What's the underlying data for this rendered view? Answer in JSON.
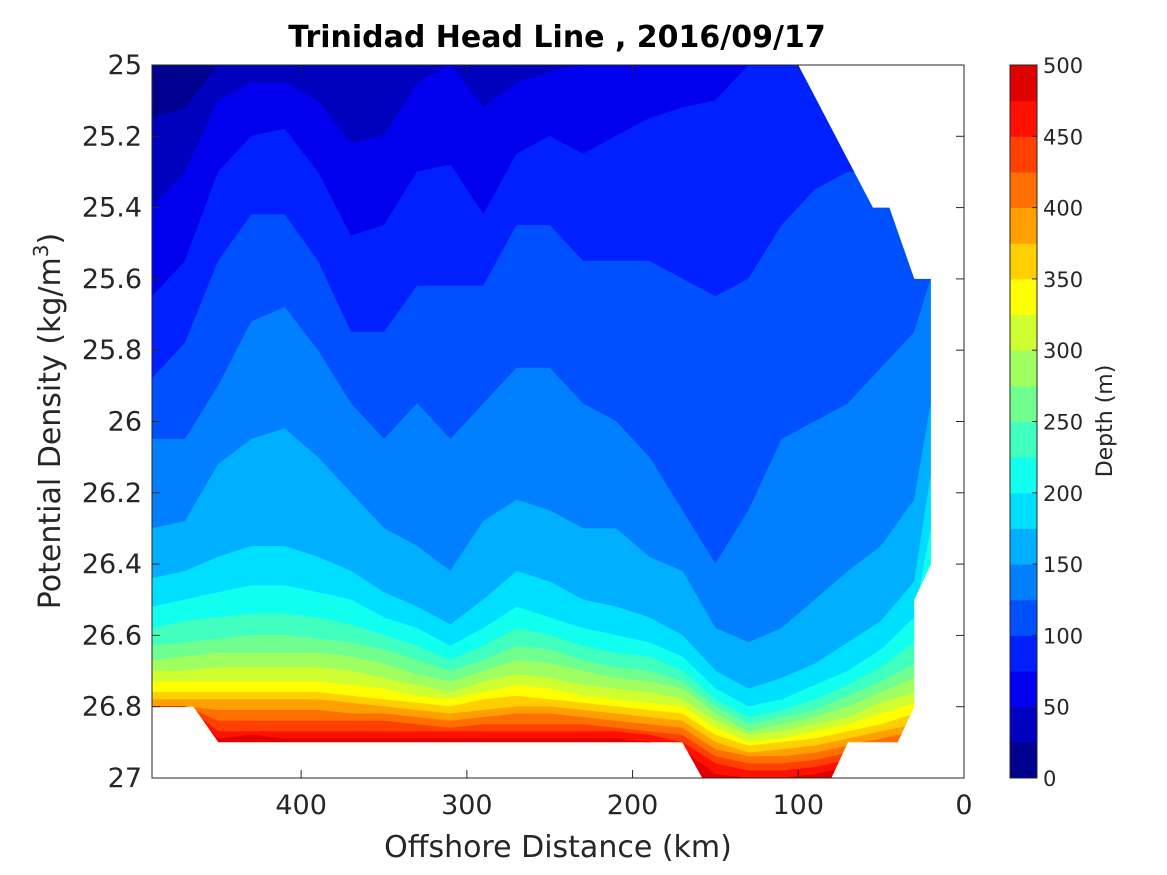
{
  "chart_data": {
    "type": "contourf",
    "title": "Trinidad Head Line , 2016/09/17",
    "xlabel": "Offshore Distance (km)",
    "ylabel_main": "Potential Density (kg/m",
    "ylabel_sup": "3",
    "ylabel_close": ")",
    "x_axis": {
      "lim": [
        0,
        490
      ],
      "reversed": true,
      "ticks": [
        400,
        300,
        200,
        100,
        0
      ],
      "tick_labels": [
        "400",
        "300",
        "200",
        "100",
        "0"
      ]
    },
    "y_axis": {
      "lim": [
        25,
        27
      ],
      "reversed": true,
      "ticks": [
        25,
        25.2,
        25.4,
        25.6,
        25.8,
        26,
        26.2,
        26.4,
        26.6,
        26.8,
        27
      ],
      "tick_labels": [
        "25",
        "25.2",
        "25.4",
        "25.6",
        "25.8",
        "26",
        "26.2",
        "26.4",
        "26.6",
        "26.8",
        "27"
      ]
    },
    "colorbar": {
      "label": "Depth (m)",
      "lim": [
        0,
        500
      ],
      "ticks": [
        0,
        50,
        100,
        150,
        200,
        250,
        300,
        350,
        400,
        450,
        500
      ],
      "tick_labels": [
        "0",
        "50",
        "100",
        "150",
        "200",
        "250",
        "300",
        "350",
        "400",
        "450",
        "500"
      ]
    },
    "levels": [
      0,
      25,
      50,
      75,
      100,
      125,
      150,
      175,
      200,
      225,
      250,
      275,
      300,
      325,
      350,
      375,
      400,
      425,
      450,
      475,
      500
    ],
    "band_colors": [
      "#00008f",
      "#0000bf",
      "#0000ef",
      "#0020ff",
      "#0050ff",
      "#0080ff",
      "#00afff",
      "#00dfff",
      "#10ffef",
      "#40ffbf",
      "#70ff8f",
      "#9fff60",
      "#cfff30",
      "#ffff00",
      "#ffcf00",
      "#ff9f00",
      "#ff7000",
      "#ff4000",
      "#ff1000",
      "#df0000"
    ],
    "colormap": "jet",
    "stations_x_km": [
      490,
      470,
      450,
      430,
      410,
      390,
      370,
      350,
      330,
      310,
      290,
      270,
      250,
      230,
      210,
      190,
      170,
      150,
      130,
      110,
      90,
      70,
      50,
      30,
      20
    ],
    "isopycnals": [
      {
        "depth": 25,
        "sigma": [
          25.15,
          25.12,
          25.0,
          25.0,
          25.0,
          25.0,
          25.0,
          25.0,
          25.0,
          25.0,
          25.0,
          25.0,
          25.0,
          25.0,
          25.0,
          25.0,
          25.0,
          25.0,
          25.0,
          25.0,
          25.0,
          25.0,
          25.0,
          25.0,
          25.0
        ]
      },
      {
        "depth": 50,
        "sigma": [
          25.4,
          25.3,
          25.1,
          25.05,
          25.05,
          25.1,
          25.22,
          25.2,
          25.05,
          25.0,
          25.12,
          25.05,
          25.02,
          25.0,
          25.0,
          25.0,
          25.0,
          25.0,
          25.0,
          25.0,
          25.0,
          25.0,
          25.0,
          25.0,
          25.0
        ]
      },
      {
        "depth": 75,
        "sigma": [
          25.65,
          25.55,
          25.3,
          25.2,
          25.18,
          25.3,
          25.48,
          25.45,
          25.3,
          25.28,
          25.42,
          25.25,
          25.2,
          25.25,
          25.2,
          25.15,
          25.12,
          25.1,
          25.0,
          25.0,
          25.0,
          25.0,
          25.0,
          25.0,
          25.0
        ]
      },
      {
        "depth": 100,
        "sigma": [
          25.88,
          25.78,
          25.55,
          25.42,
          25.42,
          25.55,
          25.75,
          25.75,
          25.62,
          25.62,
          25.62,
          25.45,
          25.45,
          25.55,
          25.55,
          25.55,
          25.6,
          25.65,
          25.6,
          25.45,
          25.35,
          25.3,
          25.3,
          25.2,
          25.0
        ]
      },
      {
        "depth": 125,
        "sigma": [
          26.05,
          26.05,
          25.9,
          25.72,
          25.68,
          25.8,
          25.95,
          26.05,
          25.95,
          26.05,
          25.95,
          25.85,
          25.85,
          25.95,
          26.0,
          26.1,
          26.25,
          26.4,
          26.25,
          26.05,
          26.0,
          25.95,
          25.85,
          25.75,
          25.6
        ]
      },
      {
        "depth": 150,
        "sigma": [
          26.3,
          26.28,
          26.12,
          26.05,
          26.02,
          26.1,
          26.2,
          26.3,
          26.35,
          26.42,
          26.28,
          26.22,
          26.25,
          26.3,
          26.3,
          26.38,
          26.42,
          26.58,
          26.62,
          26.58,
          26.5,
          26.42,
          26.35,
          26.22,
          25.95
        ]
      },
      {
        "depth": 175,
        "sigma": [
          26.44,
          26.42,
          26.38,
          26.35,
          26.35,
          26.38,
          26.42,
          26.48,
          26.52,
          26.57,
          26.5,
          26.42,
          26.45,
          26.5,
          26.52,
          26.55,
          26.6,
          26.7,
          26.75,
          26.72,
          26.68,
          26.62,
          26.56,
          26.45,
          26.15
        ]
      },
      {
        "depth": 200,
        "sigma": [
          26.52,
          26.5,
          26.48,
          26.46,
          26.46,
          26.48,
          26.5,
          26.55,
          26.58,
          26.63,
          26.58,
          26.52,
          26.55,
          26.58,
          26.6,
          26.62,
          26.66,
          26.75,
          26.8,
          26.78,
          26.74,
          26.7,
          26.64,
          26.55,
          26.3
        ]
      },
      {
        "depth": 225,
        "sigma": [
          26.58,
          26.56,
          26.55,
          26.54,
          26.54,
          26.55,
          26.57,
          26.6,
          26.63,
          26.67,
          26.63,
          26.58,
          26.6,
          26.63,
          26.65,
          26.66,
          26.7,
          26.78,
          26.83,
          26.81,
          26.78,
          26.74,
          26.69,
          26.62,
          26.4
        ]
      },
      {
        "depth": 250,
        "sigma": [
          26.63,
          26.62,
          26.61,
          26.6,
          26.6,
          26.61,
          26.62,
          26.64,
          26.67,
          26.7,
          26.67,
          26.63,
          26.64,
          26.67,
          26.69,
          26.7,
          26.73,
          26.8,
          26.85,
          26.83,
          26.81,
          26.77,
          26.73,
          26.68,
          26.5
        ]
      },
      {
        "depth": 275,
        "sigma": [
          26.67,
          26.66,
          26.65,
          26.65,
          26.65,
          26.65,
          26.66,
          26.68,
          26.71,
          26.73,
          26.7,
          26.67,
          26.68,
          26.7,
          26.72,
          26.73,
          26.75,
          26.82,
          26.87,
          26.85,
          26.83,
          26.8,
          26.76,
          26.72,
          26.6
        ]
      },
      {
        "depth": 300,
        "sigma": [
          26.7,
          26.7,
          26.69,
          26.69,
          26.69,
          26.69,
          26.7,
          26.72,
          26.74,
          26.76,
          26.73,
          26.71,
          26.72,
          26.74,
          26.75,
          26.76,
          26.78,
          26.84,
          26.88,
          26.87,
          26.85,
          26.83,
          26.79,
          26.76,
          26.68
        ]
      },
      {
        "depth": 325,
        "sigma": [
          26.73,
          26.73,
          26.73,
          26.73,
          26.73,
          26.73,
          26.74,
          26.75,
          26.77,
          26.78,
          26.76,
          26.74,
          26.75,
          26.77,
          26.78,
          26.79,
          26.8,
          26.86,
          26.9,
          26.89,
          26.87,
          26.85,
          26.82,
          26.79,
          26.74
        ]
      },
      {
        "depth": 350,
        "sigma": [
          26.76,
          26.76,
          26.76,
          26.76,
          26.76,
          26.76,
          26.77,
          26.78,
          26.79,
          26.8,
          26.78,
          26.77,
          26.78,
          26.79,
          26.8,
          26.81,
          26.82,
          26.88,
          26.91,
          26.9,
          26.89,
          26.87,
          26.85,
          26.82,
          26.79
        ]
      },
      {
        "depth": 375,
        "sigma": [
          26.78,
          26.78,
          26.78,
          26.78,
          26.78,
          26.78,
          26.79,
          26.8,
          26.81,
          26.82,
          26.81,
          26.8,
          26.8,
          26.81,
          26.82,
          26.83,
          26.84,
          26.9,
          26.93,
          26.92,
          26.91,
          26.89,
          26.87,
          26.85,
          26.83
        ]
      },
      {
        "depth": 400,
        "sigma": [
          26.8,
          26.8,
          26.81,
          26.81,
          26.81,
          26.81,
          26.82,
          26.82,
          26.83,
          26.84,
          26.83,
          26.82,
          26.82,
          26.83,
          26.84,
          26.85,
          26.86,
          26.92,
          26.94,
          26.94,
          26.93,
          26.91,
          26.89,
          26.87,
          26.86
        ]
      },
      {
        "depth": 425,
        "sigma": [
          26.8,
          26.8,
          26.84,
          26.84,
          26.84,
          26.84,
          26.84,
          26.84,
          26.85,
          26.86,
          26.85,
          26.85,
          26.85,
          26.85,
          26.86,
          26.87,
          26.88,
          26.94,
          26.96,
          26.96,
          26.95,
          26.93,
          26.91,
          26.89,
          26.89
        ]
      },
      {
        "depth": 450,
        "sigma": [
          26.8,
          26.8,
          26.87,
          26.87,
          26.87,
          26.87,
          26.87,
          26.87,
          26.87,
          26.87,
          26.87,
          26.87,
          26.87,
          26.87,
          26.87,
          26.88,
          26.9,
          26.96,
          26.98,
          26.98,
          26.97,
          26.95,
          26.93,
          26.91,
          26.91
        ]
      },
      {
        "depth": 475,
        "sigma": [
          26.8,
          26.8,
          26.89,
          26.88,
          26.89,
          26.89,
          26.89,
          26.89,
          26.89,
          26.89,
          26.89,
          26.89,
          26.89,
          26.89,
          26.89,
          26.9,
          26.92,
          26.99,
          27.0,
          27.0,
          26.99,
          26.97,
          26.95,
          26.93,
          26.93
        ]
      }
    ],
    "data_boundary": [
      [
        490,
        25
      ],
      [
        490,
        26.8
      ],
      [
        465,
        26.8
      ],
      [
        450,
        26.9
      ],
      [
        170,
        26.9
      ],
      [
        158,
        27
      ],
      [
        80,
        27
      ],
      [
        70,
        26.9
      ],
      [
        40,
        26.9
      ],
      [
        30,
        26.8
      ],
      [
        30,
        26.5
      ],
      [
        20,
        26.4
      ],
      [
        20,
        25.6
      ],
      [
        30,
        25.6
      ],
      [
        45,
        25.4
      ],
      [
        55,
        25.4
      ],
      [
        100,
        25
      ]
    ]
  }
}
